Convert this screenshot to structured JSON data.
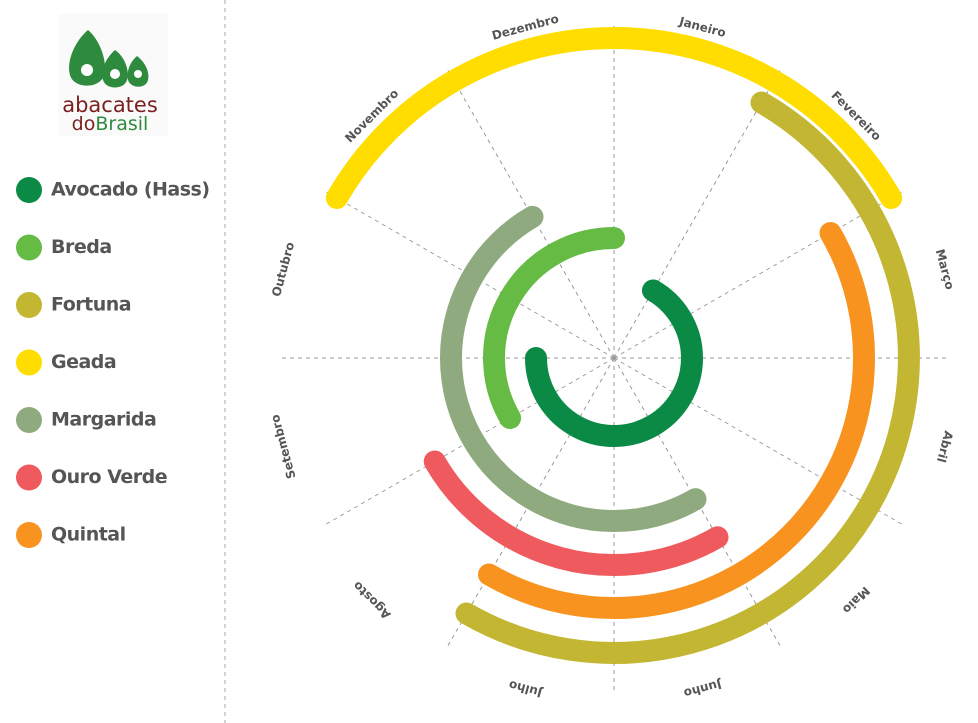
{
  "logo": {
    "line1": "abacates",
    "line2a": "do",
    "line2b": "Brasil"
  },
  "chart_data": {
    "type": "radial-season",
    "categories": [
      "Janeiro",
      "Fevereiro",
      "Março",
      "Abril",
      "Maio",
      "Junho",
      "Julho",
      "Agosto",
      "Setembro",
      "Outubro",
      "Novembro",
      "Dezembro"
    ],
    "series": [
      {
        "name": "Avocado (Hass)",
        "color": "#0a8a44",
        "start": 1,
        "end": 9
      },
      {
        "name": "Breda",
        "color": "#66bb44",
        "start": 8,
        "end": 12
      },
      {
        "name": "Fortuna",
        "color": "#c2b632",
        "start": 1,
        "end": 7
      },
      {
        "name": "Geada",
        "color": "#ffdd00",
        "start": 10,
        "end": 2
      },
      {
        "name": "Margarida",
        "color": "#8faa7f",
        "start": 5,
        "end": 11
      },
      {
        "name": "Ouro Verde",
        "color": "#ef5a5f",
        "start": 5,
        "end": 8
      },
      {
        "name": "Quintal",
        "color": "#f7931e",
        "start": 2,
        "end": 7
      }
    ]
  }
}
